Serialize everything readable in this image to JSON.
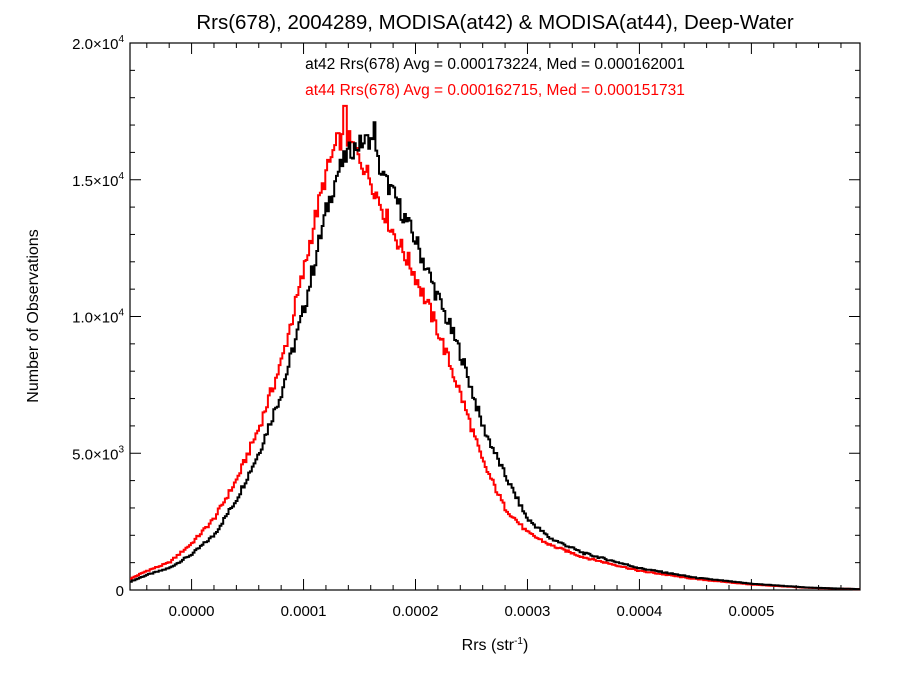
{
  "chart_data": {
    "type": "line",
    "title": "Rrs(678), 2004289, MODISA(at42) & MODISA(at44), Deep-Water",
    "xlabel": {
      "base": "Rrs (str",
      "sup": "-1",
      "tail": ")"
    },
    "ylabel": "Number of Observations",
    "xlim": [
      -5.5e-05,
      0.000597
    ],
    "ylim": [
      0,
      20000
    ],
    "grid": false,
    "x_ticks": [
      {
        "value": 0.0,
        "label": "0.0000"
      },
      {
        "value": 0.0001,
        "label": "0.0001"
      },
      {
        "value": 0.0002,
        "label": "0.0002"
      },
      {
        "value": 0.0003,
        "label": "0.0003"
      },
      {
        "value": 0.0004,
        "label": "0.0004"
      },
      {
        "value": 0.0005,
        "label": "0.0005"
      }
    ],
    "y_ticks": [
      {
        "value": 0,
        "mant": "0",
        "exp": ""
      },
      {
        "value": 5000,
        "mant": "5.0×10",
        "exp": "3"
      },
      {
        "value": 10000,
        "mant": "1.0×10",
        "exp": "4"
      },
      {
        "value": 15000,
        "mant": "1.5×10",
        "exp": "4"
      },
      {
        "value": 20000,
        "mant": "2.0×10",
        "exp": "4"
      }
    ],
    "annotations": [
      {
        "text": "at42 Rrs(678) Avg = 0.000173224, Med = 0.000162001",
        "color": "#000000"
      },
      {
        "text": "at44 Rrs(678) Avg = 0.000162715, Med = 0.000151731",
        "color": "#ff0000"
      }
    ],
    "series": [
      {
        "name": "at42",
        "color": "#000000",
        "x": [
          -5.5e-05,
          -4e-05,
          -2e-05,
          0.0,
          2e-05,
          4e-05,
          6e-05,
          8e-05,
          0.0001,
          0.00011,
          0.00012,
          0.00013,
          0.00014,
          0.00015,
          0.00016,
          0.00017,
          0.00018,
          0.0002,
          0.00022,
          0.00024,
          0.00026,
          0.00028,
          0.0003,
          0.00032,
          0.00035,
          0.0004,
          0.00045,
          0.0005,
          0.00055,
          0.000597
        ],
        "y": [
          300,
          550,
          800,
          1300,
          2000,
          3300,
          5000,
          7200,
          10200,
          12000,
          13800,
          15200,
          16000,
          16300,
          16500,
          15200,
          14500,
          12800,
          10700,
          8700,
          6000,
          4200,
          2600,
          1900,
          1350,
          800,
          450,
          230,
          90,
          30
        ]
      },
      {
        "name": "at44",
        "color": "#ff0000",
        "x": [
          -5.5e-05,
          -4e-05,
          -2e-05,
          0.0,
          2e-05,
          4e-05,
          6e-05,
          8e-05,
          0.0001,
          0.00011,
          0.00012,
          0.00013,
          0.00014,
          0.00015,
          0.00016,
          0.00017,
          0.00018,
          0.0002,
          0.00022,
          0.00024,
          0.00026,
          0.00028,
          0.0003,
          0.00032,
          0.00035,
          0.0004,
          0.00045,
          0.0005,
          0.00055,
          0.000597
        ],
        "y": [
          400,
          700,
          1000,
          1700,
          2600,
          4000,
          5900,
          8300,
          11600,
          13500,
          15200,
          16400,
          16500,
          15800,
          15000,
          14000,
          13100,
          11500,
          9500,
          7200,
          4700,
          3000,
          2100,
          1650,
          1200,
          700,
          400,
          200,
          80,
          30
        ]
      }
    ],
    "peak_spikes": [
      {
        "series": 0,
        "x": 0.000163,
        "y": 17100
      },
      {
        "series": 1,
        "x": 0.000137,
        "y": 17700
      }
    ]
  }
}
